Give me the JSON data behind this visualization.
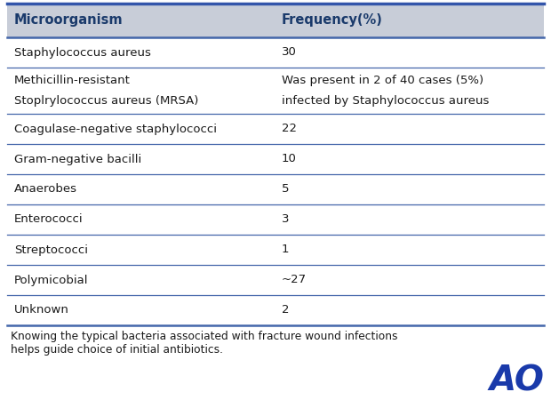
{
  "header": [
    "Microorganism",
    "Frequency(%)"
  ],
  "rows": [
    [
      "Staphylococcus aureus",
      "30"
    ],
    [
      "Methicillin-resistant\nStoplrylococcus aureus (MRSA)",
      "Was present in 2 of 40 cases (5%)\ninfected by Staphylococcus aureus"
    ],
    [
      "Coagulase-negative staphylococci",
      "22"
    ],
    [
      "Gram-negative bacilli",
      "10"
    ],
    [
      "Anaerobes",
      "5"
    ],
    [
      "Enterococci",
      "3"
    ],
    [
      "Streptococci",
      "1"
    ],
    [
      "Polymicobial",
      "~27"
    ],
    [
      "Unknown",
      "2"
    ]
  ],
  "footer": "Knowing the typical bacteria associated with fracture wound infections\nhelps guide choice of initial antibiotics.",
  "header_bg": "#c8cdd8",
  "header_text_color": "#1a3a6b",
  "body_text_color": "#1a1a1a",
  "divider_color": "#4466aa",
  "footer_text_color": "#1a1a1a",
  "ao_logo_color": "#1a3aaa",
  "col_split": 0.495,
  "fig_bg": "#ffffff",
  "top_border_color": "#3355aa",
  "bottom_border_color": "#3355aa"
}
